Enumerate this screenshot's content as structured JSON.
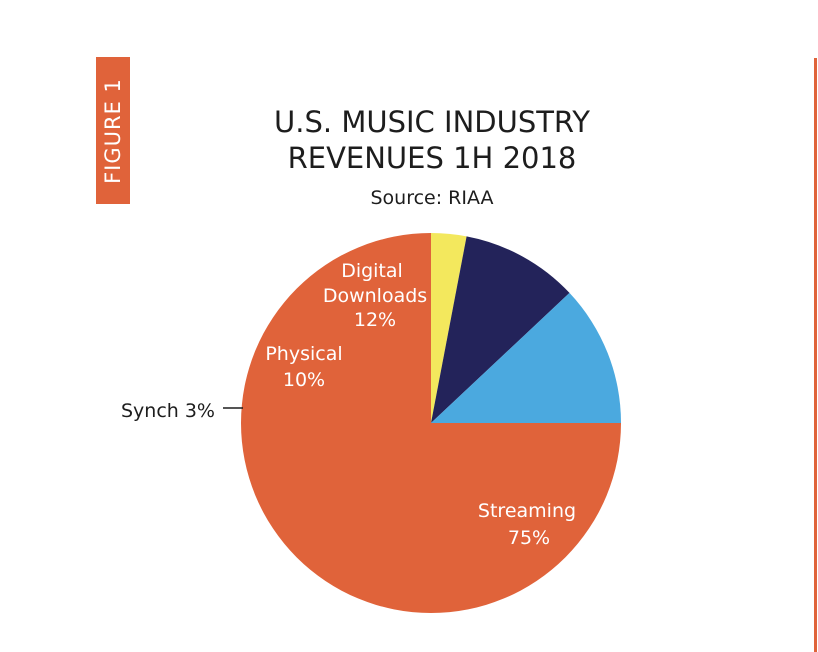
{
  "figure_tab": "FIGURE 1",
  "chart_data": {
    "type": "pie",
    "title_lines": [
      "U.S. MUSIC INDUSTRY",
      "REVENUES 1H 2018"
    ],
    "subtitle": "Source: RIAA",
    "slices": [
      {
        "label": "Streaming",
        "value": 75,
        "value_label": "75%",
        "color": "#e0633a"
      },
      {
        "label": "Synch",
        "value": 3,
        "value_label": "3%",
        "color": "#f3e85d"
      },
      {
        "label": "Physical",
        "value": 10,
        "value_label": "10%",
        "color": "#23235a"
      },
      {
        "label": "Digital Downloads",
        "value": 12,
        "value_label": "12%",
        "color": "#4ba9df"
      }
    ]
  }
}
